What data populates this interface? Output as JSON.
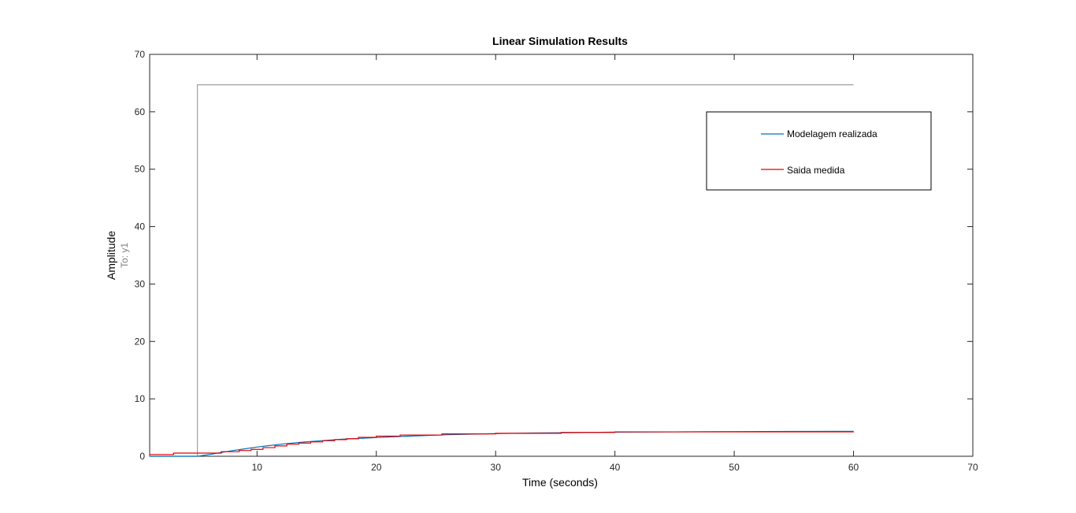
{
  "chart_data": {
    "type": "line",
    "title": "Linear Simulation Results",
    "xlabel": "Time (seconds)",
    "ylabel": "Amplitude",
    "y_sublabel": "To: y1",
    "xlim": [
      1,
      70
    ],
    "ylim": [
      0,
      70
    ],
    "x_ticks": [
      10,
      20,
      30,
      40,
      50,
      60,
      70
    ],
    "y_ticks": [
      0,
      10,
      20,
      30,
      40,
      50,
      60,
      70
    ],
    "grid": false,
    "legend_position": "top-right",
    "colors": {
      "input": "#a0a0a0",
      "model": "#0072bd",
      "measured": "#e00000",
      "axes": "#262626"
    },
    "series": [
      {
        "key": "input",
        "x": [
          1,
          5,
          5,
          60
        ],
        "y": [
          0,
          0,
          64.7,
          64.7
        ]
      },
      {
        "name": "Modelagem realizada",
        "key": "model",
        "x": [
          1,
          5,
          6,
          7,
          8,
          9,
          10,
          11,
          12,
          13,
          14,
          15,
          16,
          17,
          18,
          19,
          20,
          22,
          24,
          26,
          28,
          30,
          33,
          36,
          40,
          45,
          50,
          55,
          60
        ],
        "y": [
          0,
          0,
          0.3,
          0.65,
          1.0,
          1.3,
          1.6,
          1.85,
          2.1,
          2.3,
          2.5,
          2.65,
          2.8,
          2.95,
          3.05,
          3.15,
          3.25,
          3.45,
          3.6,
          3.75,
          3.85,
          3.95,
          4.05,
          4.1,
          4.2,
          4.25,
          4.3,
          4.33,
          4.35
        ]
      },
      {
        "name": "Saida medida",
        "key": "measured",
        "step": true,
        "x": [
          1,
          3,
          6.5,
          7,
          8.5,
          9.5,
          10.5,
          11.5,
          12.5,
          13.5,
          14.5,
          15.5,
          16.5,
          17.5,
          18.5,
          20,
          22,
          25.5,
          30,
          35.5,
          40,
          60
        ],
        "y": [
          0.3,
          0.55,
          0.55,
          0.8,
          1.0,
          1.2,
          1.5,
          1.8,
          2.1,
          2.3,
          2.5,
          2.7,
          2.9,
          3.05,
          3.3,
          3.5,
          3.7,
          3.9,
          4.0,
          4.15,
          4.25,
          4.3
        ]
      }
    ]
  }
}
